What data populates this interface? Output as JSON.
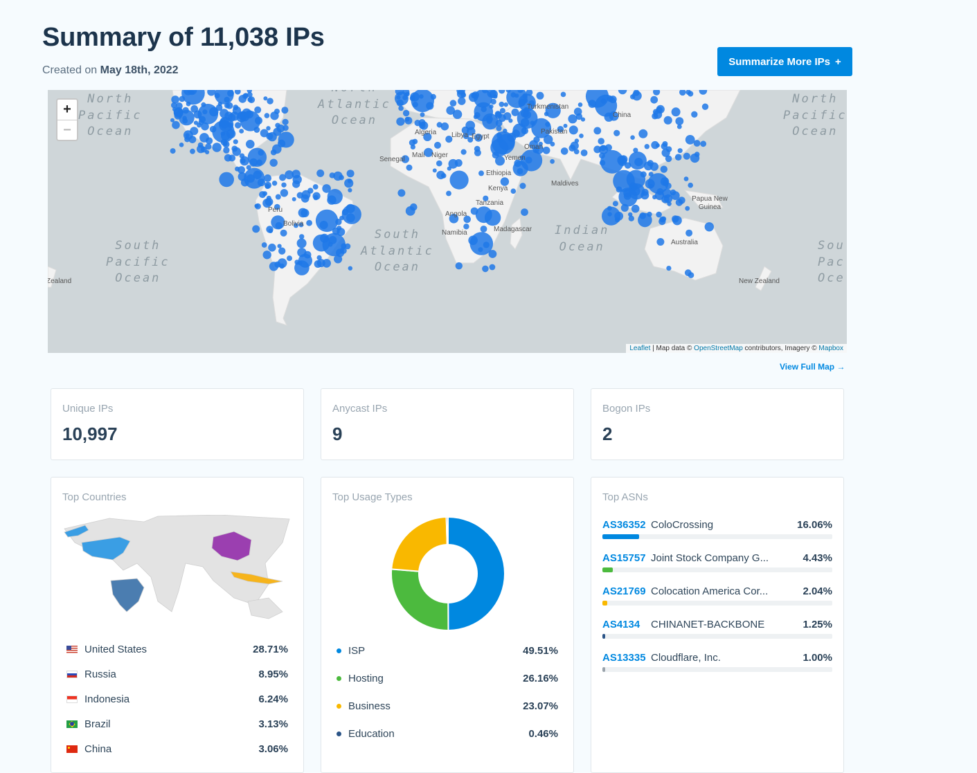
{
  "header": {
    "title": "Summary of 11,038 IPs",
    "created_prefix": "Created on",
    "created_date": "May 18th, 2022",
    "summarize_button": "Summarize More IPs",
    "summarize_icon": "+"
  },
  "map": {
    "zoom_in": "+",
    "zoom_out": "−",
    "ocean_labels": {
      "north_pacific_left": "North\nPacific\nOcean",
      "north_atlantic": "North\nAtlantic\nOcean",
      "north_pacific_right": "North\nPacific\nOcean",
      "south_pacific_left": "South\nPacific\nOcean",
      "south_atlantic": "South\nAtlantic\nOcean",
      "indian": "Indian\nOcean",
      "south_pacific_right": "Sou\nPac\nOce"
    },
    "places": [
      "China",
      "Algeria",
      "Libya",
      "Egypt",
      "Mali",
      "Niger",
      "Senegal",
      "Yemen",
      "Oman",
      "Ethiopia",
      "Kenya",
      "Tanzania",
      "Angola",
      "Namibia",
      "Madagascar",
      "Maldives",
      "Papua New Guinea",
      "Australia",
      "New Zealand",
      "Zealand",
      "Peru",
      "Bolivia",
      "Pakistan",
      "Turkmenistan"
    ],
    "attribution": {
      "leaflet": "Leaflet",
      "text1": " | Map data © ",
      "osm": "OpenStreetMap",
      "text2": " contributors, Imagery © ",
      "mapbox": "Mapbox"
    },
    "dot_color": "#1f78e8"
  },
  "view_full_map": "View Full Map →",
  "stats": {
    "unique": {
      "label": "Unique IPs",
      "value": "10,997"
    },
    "anycast": {
      "label": "Anycast IPs",
      "value": "9"
    },
    "bogon": {
      "label": "Bogon IPs",
      "value": "2"
    }
  },
  "top_countries": {
    "title": "Top Countries",
    "items": [
      {
        "name": "United States",
        "pct": "28.71%",
        "flag": "us-flag-icon"
      },
      {
        "name": "Russia",
        "pct": "8.95%",
        "flag": "ru-flag-icon"
      },
      {
        "name": "Indonesia",
        "pct": "6.24%",
        "flag": "id-flag-icon"
      },
      {
        "name": "Brazil",
        "pct": "3.13%",
        "flag": "br-flag-icon"
      },
      {
        "name": "China",
        "pct": "3.06%",
        "flag": "cn-flag-icon"
      }
    ],
    "map_colors": {
      "us": "#3a9ee4",
      "china": "#9b3fb0",
      "brazil": "#4b7db0",
      "indonesia": "#f6b41c",
      "other": "#e3e3e3"
    }
  },
  "top_usage": {
    "title": "Top Usage Types",
    "chart_data": {
      "type": "pie",
      "categories": [
        "ISP",
        "Hosting",
        "Business",
        "Education"
      ],
      "values": [
        49.51,
        26.16,
        23.07,
        0.46
      ],
      "colors": [
        "#0088e0",
        "#4cba3e",
        "#f9b800",
        "#2b5487"
      ]
    },
    "items": [
      {
        "name": "ISP",
        "pct": "49.51%",
        "color": "#0088e0"
      },
      {
        "name": "Hosting",
        "pct": "26.16%",
        "color": "#4cba3e"
      },
      {
        "name": "Business",
        "pct": "23.07%",
        "color": "#f9b800"
      },
      {
        "name": "Education",
        "pct": "0.46%",
        "color": "#2b5487"
      }
    ]
  },
  "top_asns": {
    "title": "Top ASNs",
    "items": [
      {
        "code": "AS36352",
        "name": "ColoCrossing",
        "pct": "16.06%",
        "value": 16.06,
        "color": "#0088e0"
      },
      {
        "code": "AS15757",
        "name": "Joint Stock Company G...",
        "pct": "4.43%",
        "value": 4.43,
        "color": "#4cba3e"
      },
      {
        "code": "AS21769",
        "name": "Colocation America Cor...",
        "pct": "2.04%",
        "value": 2.04,
        "color": "#f9b800"
      },
      {
        "code": "AS4134",
        "name": "CHINANET-BACKBONE",
        "pct": "1.25%",
        "value": 1.25,
        "color": "#2b5487"
      },
      {
        "code": "AS13335",
        "name": "Cloudflare, Inc.",
        "pct": "1.00%",
        "value": 1.0,
        "color": "#9aa3ab"
      }
    ]
  }
}
